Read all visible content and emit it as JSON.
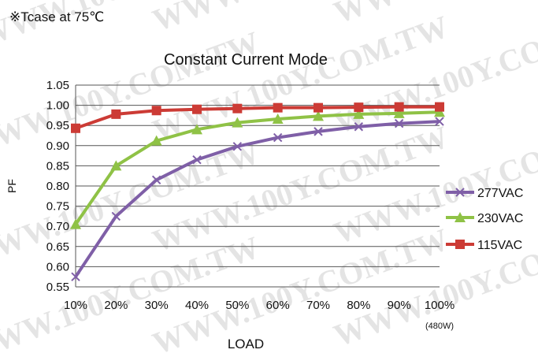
{
  "note": "※Tcase at 75℃",
  "watermark": "WWW.100Y.COM.TW",
  "chart_data": {
    "type": "line",
    "title": "Constant Current Mode",
    "xlabel": "LOAD",
    "ylabel": "PF",
    "x_note": "(480W)",
    "categories": [
      "10%",
      "20%",
      "30%",
      "40%",
      "50%",
      "60%",
      "70%",
      "80%",
      "90%",
      "100%"
    ],
    "ylim": [
      0.55,
      1.05
    ],
    "yticks": [
      "0.55",
      "0.60",
      "0.65",
      "0.70",
      "0.75",
      "0.80",
      "0.85",
      "0.90",
      "0.95",
      "1.00",
      "1.05"
    ],
    "grid": "horizontal",
    "legend_position": "right",
    "series": [
      {
        "name": "277VAC",
        "color": "#7f5fa7",
        "marker": "x",
        "values": [
          0.575,
          0.725,
          0.815,
          0.865,
          0.898,
          0.92,
          0.935,
          0.947,
          0.955,
          0.96
        ]
      },
      {
        "name": "230VAC",
        "color": "#8fc246",
        "marker": "triangle",
        "values": [
          0.705,
          0.85,
          0.912,
          0.94,
          0.957,
          0.966,
          0.973,
          0.978,
          0.98,
          0.983
        ]
      },
      {
        "name": "115VAC",
        "color": "#cc3b35",
        "marker": "square",
        "values": [
          0.943,
          0.978,
          0.987,
          0.99,
          0.992,
          0.994,
          0.994,
          0.995,
          0.996,
          0.996
        ]
      }
    ]
  }
}
